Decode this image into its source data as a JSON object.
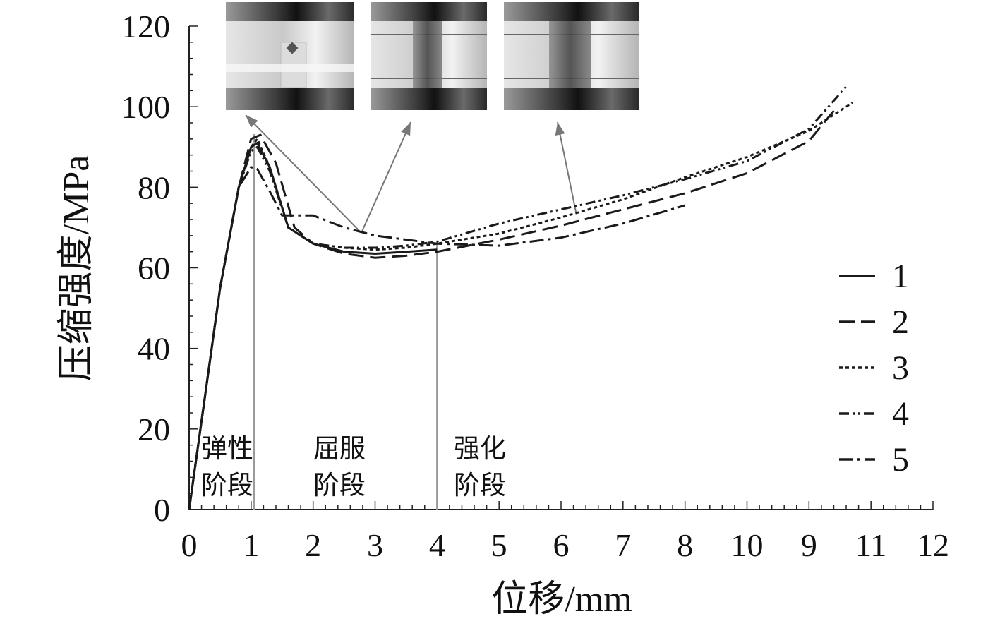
{
  "chart_data": {
    "type": "line",
    "xlabel": "位移/mm",
    "ylabel": "压缩强度/MPa",
    "xlim": [
      0,
      12
    ],
    "ylim": [
      0,
      120
    ],
    "x_tick_labels": [
      "0",
      "1",
      "2",
      "3",
      "4",
      "5",
      "6",
      "7",
      "8",
      "10",
      "9",
      "11",
      "12"
    ],
    "y_tick_labels": [
      "0",
      "20",
      "40",
      "60",
      "80",
      "100",
      "120"
    ],
    "grid": false,
    "legend_position": "right",
    "stages": [
      {
        "line1": "弹性",
        "line2": "阶段"
      },
      {
        "line1": "屈服",
        "line2": "阶段"
      },
      {
        "line1": "强化",
        "line2": "阶段"
      }
    ],
    "stage_boundaries": [
      1.05,
      4.0
    ],
    "insets": [
      "photo-elastic-stage",
      "photo-yield-stage",
      "photo-hardening-stage"
    ],
    "series": [
      {
        "name": "1",
        "dash": "solid",
        "x": [
          0,
          0.2,
          0.5,
          0.8,
          1.0,
          1.1,
          1.3,
          1.6,
          2.0,
          2.5,
          3.0,
          3.5,
          4.0
        ],
        "y": [
          0,
          22,
          55,
          80,
          90,
          91,
          85,
          70,
          66,
          64,
          63.5,
          64,
          64.5
        ]
      },
      {
        "name": "2",
        "dash": "long-dash",
        "x": [
          0,
          0.2,
          0.5,
          0.8,
          1.0,
          1.15,
          1.4,
          1.7,
          2.0,
          2.5,
          3.0,
          3.5,
          4.0,
          5.0,
          6.0,
          7.0,
          8.0,
          9.0,
          10.0,
          10.4
        ],
        "y": [
          0,
          22,
          55,
          80,
          92,
          93,
          86,
          70,
          66,
          63.5,
          62.5,
          63,
          64,
          67,
          70.5,
          74.5,
          78.5,
          83.5,
          91.5,
          99
        ]
      },
      {
        "name": "3",
        "dash": "dotted",
        "x": [
          0,
          0.2,
          0.5,
          0.8,
          1.0,
          1.1,
          1.3,
          1.6,
          2.0,
          2.5,
          3.0,
          3.5,
          4.0,
          5.0,
          6.0,
          7.0,
          8.0,
          9.0,
          10.0,
          10.7
        ],
        "y": [
          0,
          22,
          55,
          80,
          90,
          92,
          85,
          70,
          66,
          65,
          64.5,
          65,
          66,
          68.5,
          72.5,
          77,
          82.5,
          87.5,
          94,
          101
        ]
      },
      {
        "name": "4",
        "dash": "dash-dot-dot",
        "x": [
          0,
          0.2,
          0.5,
          0.8,
          1.0,
          1.1,
          1.3,
          1.6,
          2.0,
          2.5,
          3.0,
          3.5,
          4.0,
          5.0,
          6.0,
          7.0,
          8.0,
          9.0,
          10.0,
          10.6
        ],
        "y": [
          0,
          22,
          55,
          80,
          89,
          90,
          84,
          70,
          66,
          65,
          65,
          65.5,
          66.5,
          71,
          74.5,
          78,
          82,
          86.5,
          94.5,
          105
        ]
      },
      {
        "name": "5",
        "dash": "dash-dot",
        "x": [
          0,
          0.2,
          0.5,
          0.8,
          1.0,
          1.1,
          1.3,
          1.5,
          2.0,
          2.5,
          3.0,
          3.5,
          4.0,
          5.0,
          6.0,
          7.0,
          8.0
        ],
        "y": [
          0,
          22,
          55,
          80,
          85,
          84.5,
          79,
          73,
          73,
          70,
          68,
          67,
          66,
          65.5,
          67.5,
          71,
          75.5
        ]
      }
    ]
  }
}
